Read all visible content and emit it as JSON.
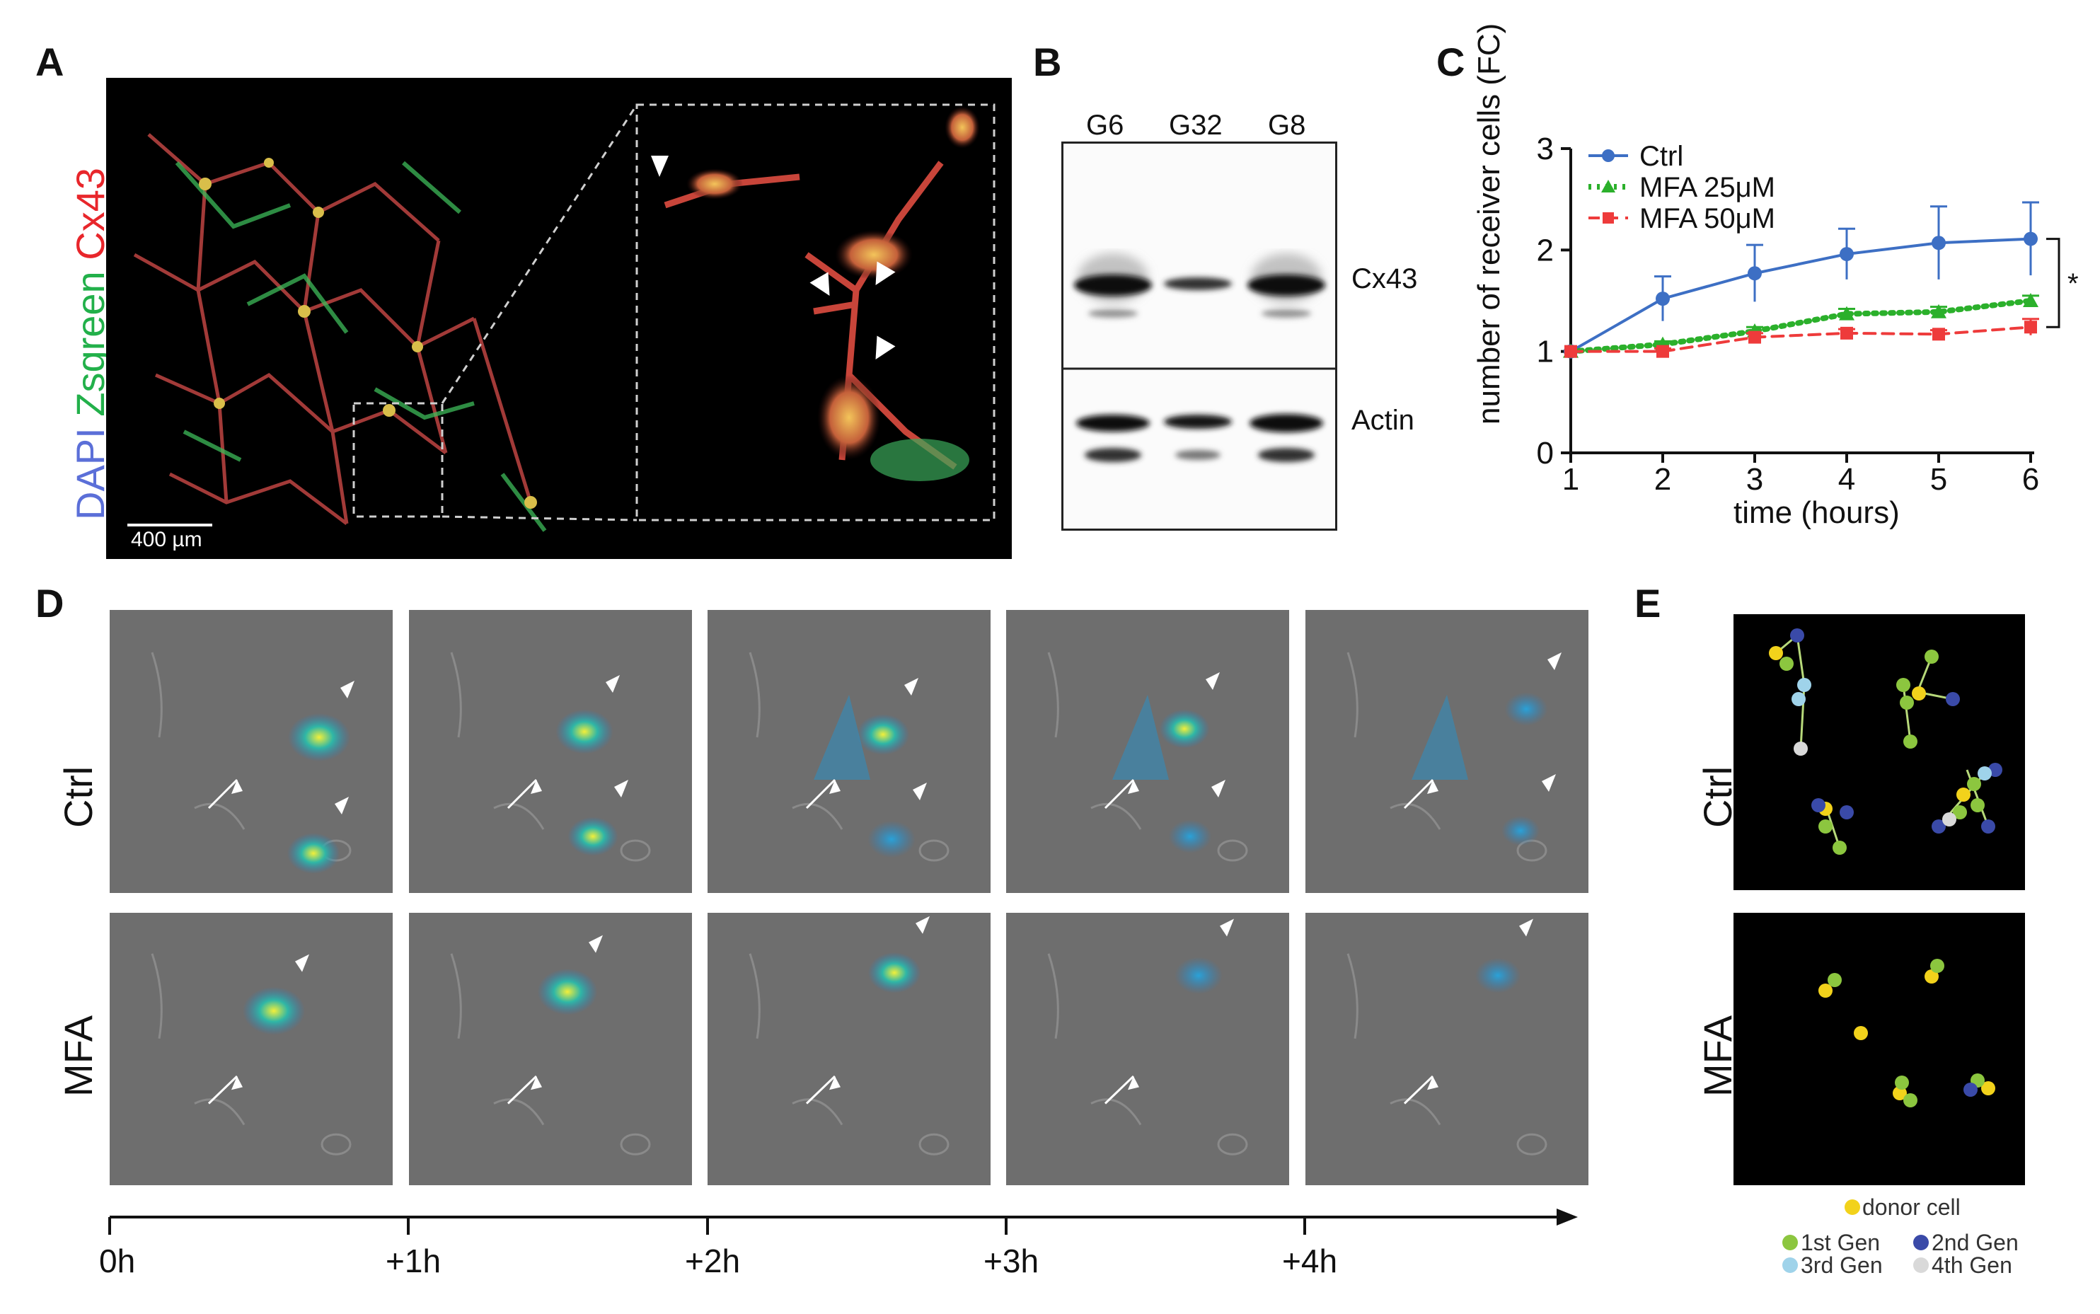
{
  "panels": {
    "A": {
      "label": "A",
      "channels": [
        {
          "text": "DAPI",
          "color": "#5b6fd8"
        },
        {
          "text": "Zsgreen",
          "color": "#22b04a"
        },
        {
          "text": "Cx43",
          "color": "#e8262b"
        }
      ],
      "scalebar": "400 µm"
    },
    "B": {
      "label": "B",
      "lanes": [
        "G6",
        "G32",
        "G8"
      ],
      "bands": [
        "Cx43",
        "Actin"
      ]
    },
    "C": {
      "label": "C",
      "significance": "*"
    },
    "D": {
      "label": "D",
      "rows": [
        "Ctrl",
        "MFA"
      ],
      "timepoints": [
        "0h",
        "+1h",
        "+2h",
        "+3h",
        "+4h"
      ]
    },
    "E": {
      "label": "E",
      "rows": [
        "Ctrl",
        "MFA"
      ],
      "legend": {
        "donor": "donor cell",
        "gen1": "1st Gen",
        "gen2": "2nd Gen",
        "gen3": "3rd Gen",
        "gen4": "4th Gen"
      },
      "colors": {
        "donor": "#f2d21b",
        "gen1": "#8cc63f",
        "gen2": "#3a4aa8",
        "gen3": "#9fd3ea",
        "gen4": "#d9d9d9"
      }
    }
  },
  "chart_data": {
    "type": "line",
    "x": [
      1,
      2,
      3,
      4,
      5,
      6
    ],
    "xlabel": "time (hours)",
    "ylabel": "number of receiver cells (FC)",
    "ylim": [
      0,
      3
    ],
    "yticks": [
      0,
      1,
      2,
      3
    ],
    "legend_position": "top-left",
    "series": [
      {
        "name": "Ctrl",
        "values": [
          1.0,
          1.52,
          1.77,
          1.96,
          2.07,
          2.11
        ],
        "errors": [
          0,
          0.22,
          0.28,
          0.25,
          0.36,
          0.36
        ],
        "color": "#3d6fc4",
        "style": "solid",
        "marker": "circle"
      },
      {
        "name": "MFA 25μM",
        "values": [
          1.0,
          1.07,
          1.2,
          1.37,
          1.39,
          1.5
        ],
        "errors": [
          0,
          0.03,
          0.04,
          0.05,
          0.05,
          0.05
        ],
        "color": "#2bb02b",
        "style": "dotted",
        "marker": "triangle"
      },
      {
        "name": "MFA 50μM",
        "values": [
          1.0,
          1.0,
          1.14,
          1.18,
          1.17,
          1.24
        ],
        "errors": [
          0,
          0.03,
          0.04,
          0.04,
          0.04,
          0.08
        ],
        "color": "#ee3b3b",
        "style": "dashed",
        "marker": "square"
      }
    ]
  }
}
